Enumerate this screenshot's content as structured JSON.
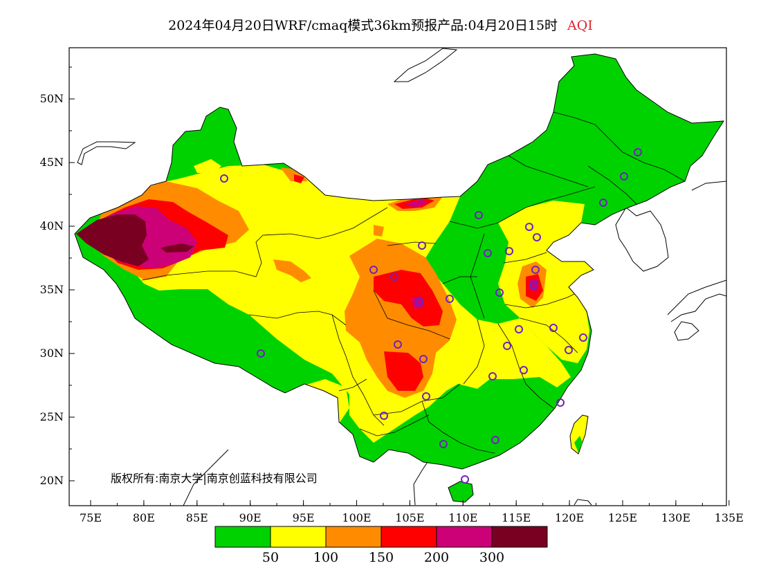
{
  "title": {
    "text": "2024年04月20日WRF/cmaq模式36km预报产品:04月20日15时",
    "variable": "AQI"
  },
  "axes": {
    "lon_ticks": [
      "75E",
      "80E",
      "85E",
      "90E",
      "95E",
      "100E",
      "105E",
      "110E",
      "115E",
      "120E",
      "125E",
      "130E",
      "135E"
    ],
    "lat_ticks": [
      "50N",
      "45N",
      "40N",
      "35N",
      "30N",
      "25N",
      "20N"
    ]
  },
  "copyright": "版权所有:南京大学|南京创蓝科技有限公司",
  "legend": {
    "colors": [
      "#00d200",
      "#ffff00",
      "#ff8c00",
      "#ff0000",
      "#cc0077",
      "#7a0022"
    ],
    "labels": [
      "50",
      "100",
      "150",
      "200",
      "300"
    ]
  },
  "station_color": "#7020c0"
}
